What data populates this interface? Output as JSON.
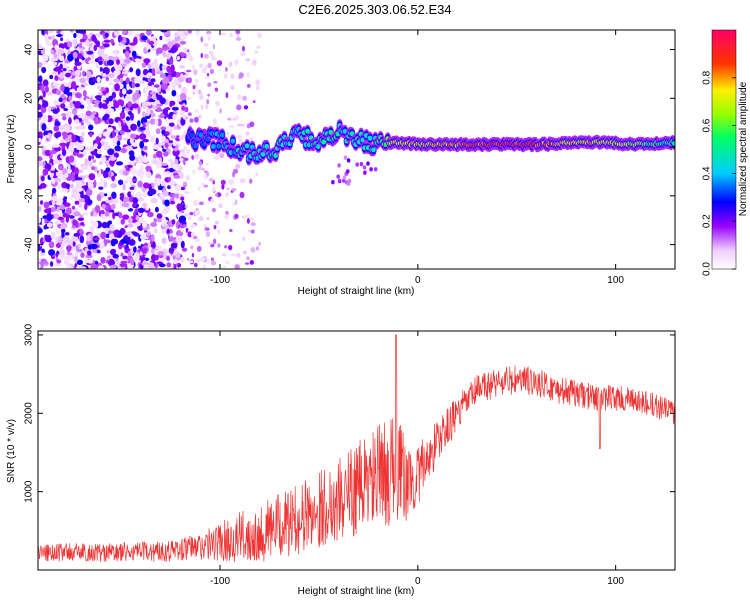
{
  "title": "C2E6.2025.303.06.52.E34",
  "chart_data": [
    {
      "type": "heatmap",
      "xlabel": "Height of straight line (km)",
      "ylabel": "Frequency (Hz)",
      "xlim": [
        -192,
        130
      ],
      "ylim": [
        -50,
        48
      ],
      "x_ticks": [
        -100,
        0,
        100
      ],
      "x_tick_labels": [
        "-100",
        "0",
        "100"
      ],
      "y_ticks": [
        40,
        20,
        0,
        -20,
        -40
      ],
      "y_tick_labels": [
        "40",
        "20",
        "0",
        "-20",
        "-40"
      ],
      "colorbar": {
        "label": "Normalized spectral amplitude",
        "range": [
          0,
          1
        ],
        "ticks": [
          0.0,
          0.2,
          0.4,
          0.6,
          0.8
        ],
        "tick_labels": [
          "0.0",
          "0.2",
          "0.4",
          "0.6",
          "0.8"
        ]
      },
      "noise_region_x": [
        -192,
        -118
      ],
      "sparse_region_x": [
        -118,
        -80
      ],
      "ridge": [
        {
          "x": -116,
          "f": 3,
          "a": 0.35
        },
        {
          "x": -100,
          "f": 3,
          "a": 0.4
        },
        {
          "x": -90,
          "f": -1,
          "a": 0.45
        },
        {
          "x": -80,
          "f": -3,
          "a": 0.45
        },
        {
          "x": -70,
          "f": 0,
          "a": 0.5
        },
        {
          "x": -60,
          "f": 5,
          "a": 0.45
        },
        {
          "x": -50,
          "f": 2,
          "a": 0.5
        },
        {
          "x": -40,
          "f": 6,
          "a": 0.5
        },
        {
          "x": -30,
          "f": 3,
          "a": 0.45
        },
        {
          "x": -20,
          "f": 1,
          "a": 0.55
        },
        {
          "x": -10,
          "f": 2,
          "a": 0.8
        },
        {
          "x": 0,
          "f": 1,
          "a": 0.75
        },
        {
          "x": 20,
          "f": 1,
          "a": 0.85
        },
        {
          "x": 40,
          "f": 1,
          "a": 0.95
        },
        {
          "x": 60,
          "f": 1,
          "a": 0.9
        },
        {
          "x": 80,
          "f": 2,
          "a": 0.75
        },
        {
          "x": 90,
          "f": 2,
          "a": 0.8
        },
        {
          "x": 110,
          "f": 1,
          "a": 0.7
        },
        {
          "x": 130,
          "f": 2,
          "a": 0.5
        }
      ]
    },
    {
      "type": "line",
      "xlabel": "Height of straight line (km)",
      "ylabel": "SNR (10 * v/v)",
      "xlim": [
        -192,
        130
      ],
      "ylim": [
        0,
        3050
      ],
      "x_ticks": [
        -100,
        0,
        100
      ],
      "x_tick_labels": [
        "-100",
        "0",
        "100"
      ],
      "y_ticks": [
        1000,
        2000,
        3000
      ],
      "y_tick_labels": [
        "1000",
        "2000",
        "3000"
      ],
      "color": "#ee3333",
      "series": [
        {
          "name": "SNR",
          "x": [
            -192,
            -180,
            -160,
            -140,
            -120,
            -110,
            -100,
            -90,
            -80,
            -70,
            -60,
            -50,
            -40,
            -30,
            -20,
            -15,
            -10,
            -5,
            0,
            10,
            20,
            30,
            40,
            50,
            60,
            70,
            80,
            90,
            100,
            110,
            120,
            130
          ],
          "y": [
            220,
            230,
            220,
            230,
            260,
            300,
            360,
            420,
            480,
            560,
            650,
            780,
            900,
            1050,
            1200,
            1250,
            1300,
            1100,
            1200,
            1650,
            2000,
            2300,
            2400,
            2420,
            2400,
            2300,
            2250,
            2200,
            2200,
            2150,
            2100,
            2000
          ],
          "noise_amplitude": [
            120,
            120,
            120,
            130,
            150,
            180,
            250,
            320,
            380,
            420,
            450,
            500,
            550,
            600,
            650,
            700,
            650,
            500,
            400,
            300,
            220,
            200,
            200,
            200,
            180,
            180,
            170,
            170,
            170,
            160,
            160,
            150
          ]
        }
      ],
      "annotations": [
        {
          "x": -11,
          "y": 3000,
          "note": "peak"
        },
        {
          "x": 92,
          "y": 1550,
          "note": "dip"
        }
      ]
    }
  ]
}
